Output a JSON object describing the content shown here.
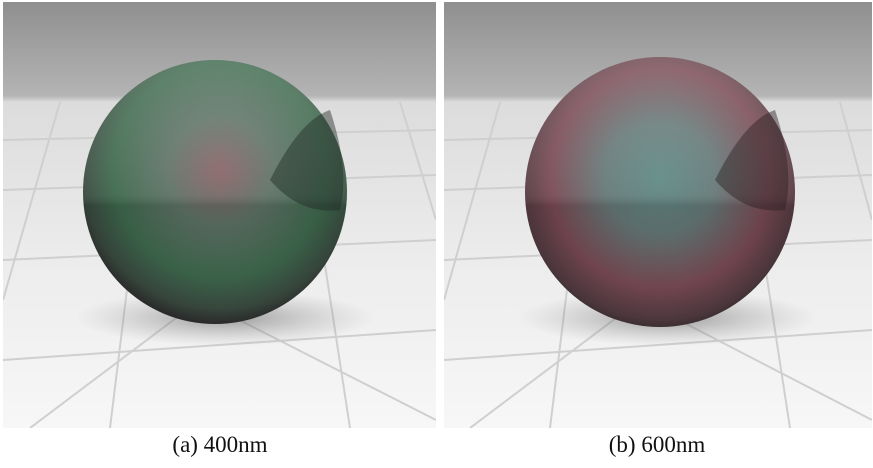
{
  "panels": [
    {
      "caption": "(a) 400nm"
    },
    {
      "caption": "(b) 600nm"
    }
  ]
}
